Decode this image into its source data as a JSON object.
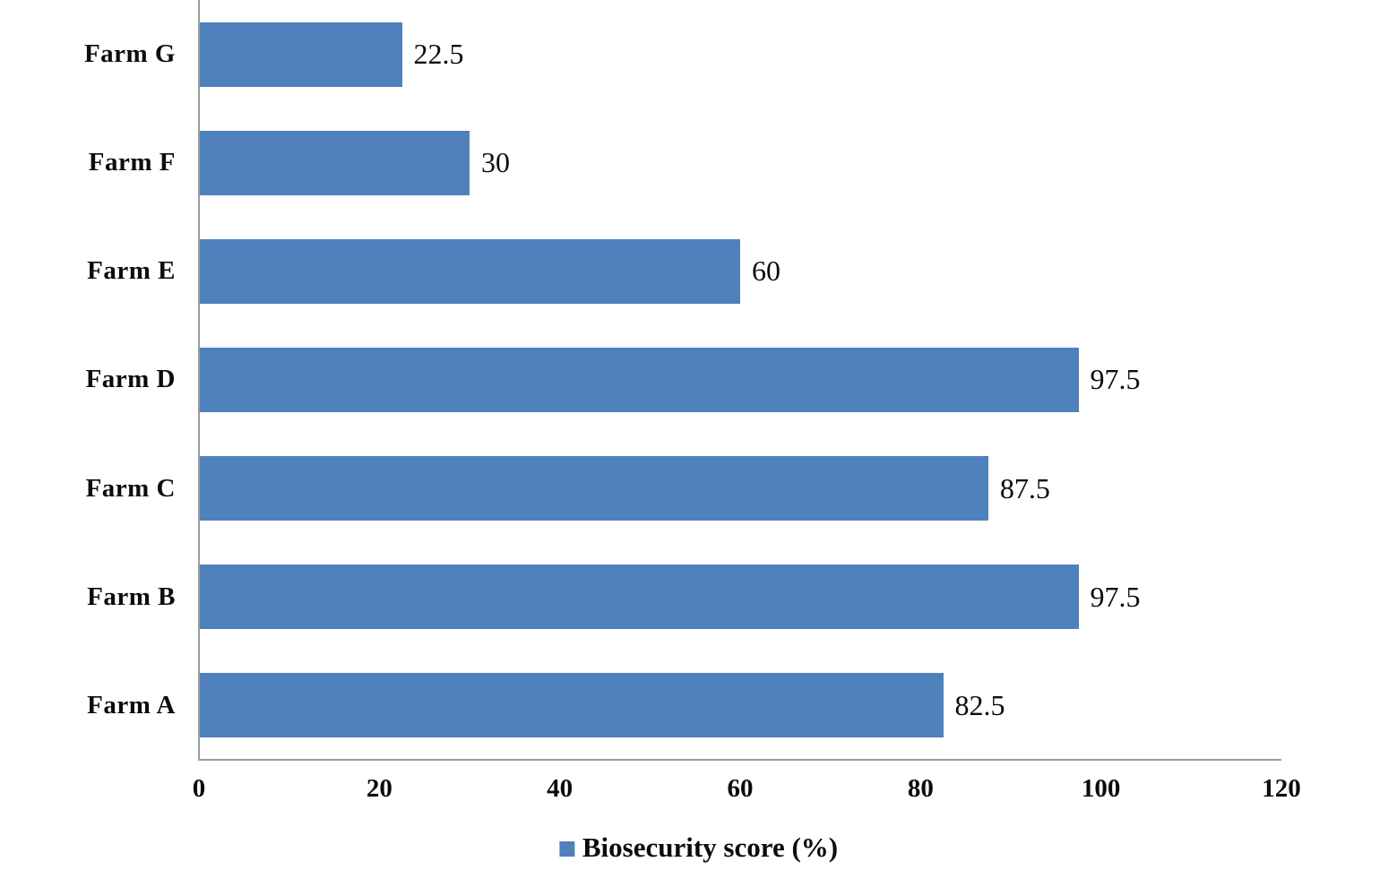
{
  "chart_data": {
    "type": "bar",
    "orientation": "horizontal",
    "categories": [
      "Farm G",
      "Farm F",
      "Farm E",
      "Farm D",
      "Farm C",
      "Farm B",
      "Farm A"
    ],
    "values": [
      22.5,
      30,
      60,
      97.5,
      87.5,
      97.5,
      82.5
    ],
    "value_labels": [
      "22.5",
      "30",
      "60",
      "97.5",
      "87.5",
      "97.5",
      "82.5"
    ],
    "xlim": [
      0,
      120
    ],
    "xticks": [
      0,
      20,
      40,
      60,
      80,
      100,
      120
    ],
    "grid": false,
    "title": "",
    "xlabel": "",
    "ylabel": "",
    "legend": {
      "label": "Biosecurity score (%)",
      "position": "bottom-center"
    },
    "colors": {
      "bar": "#4F81BD",
      "axis_line": "#9c9c9c",
      "text": "#0c0c0c",
      "background": "#ffffff"
    }
  }
}
